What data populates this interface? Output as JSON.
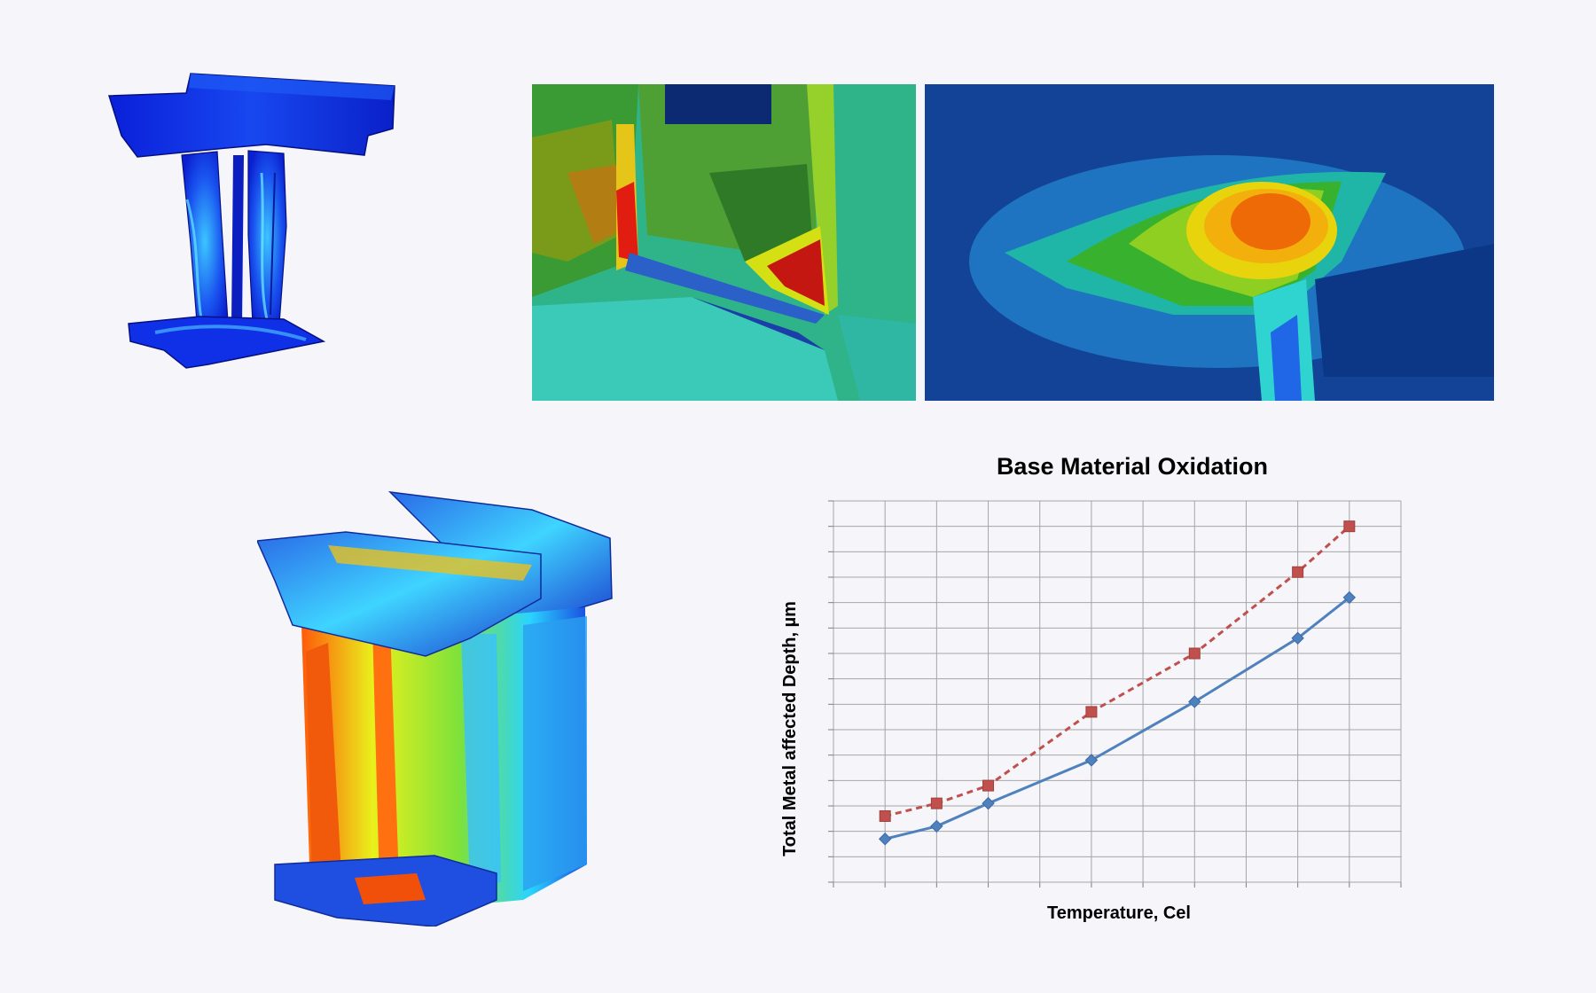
{
  "chart_data": {
    "type": "line",
    "title": "Base Material Oxidation",
    "xlabel": "Temperature, Cel",
    "ylabel": "Total Metal affected Depth, µm",
    "x": [
      1,
      2,
      3,
      5,
      7,
      9,
      10
    ],
    "xlim": [
      0,
      11
    ],
    "ylim": [
      0,
      15
    ],
    "grid": true,
    "legend": "none",
    "series": [
      {
        "values": [
          2.6,
          3.1,
          3.8,
          6.7,
          9.0,
          12.2,
          14.0
        ],
        "color": "#c0504d",
        "style": "dashed",
        "marker": "square"
      },
      {
        "values": [
          1.7,
          2.2,
          3.1,
          4.8,
          7.1,
          9.6,
          11.2
        ],
        "color": "#4f81bd",
        "style": "solid",
        "marker": "diamond"
      }
    ]
  },
  "images": {
    "vane_top": "turbine-vane-fea-contour-blue",
    "zoom_a": "fillet-stress-contour-closeup",
    "zoom_b": "hotspot-contour-closeup",
    "vane_bottom": "turbine-vane-fea-contour-hot"
  }
}
